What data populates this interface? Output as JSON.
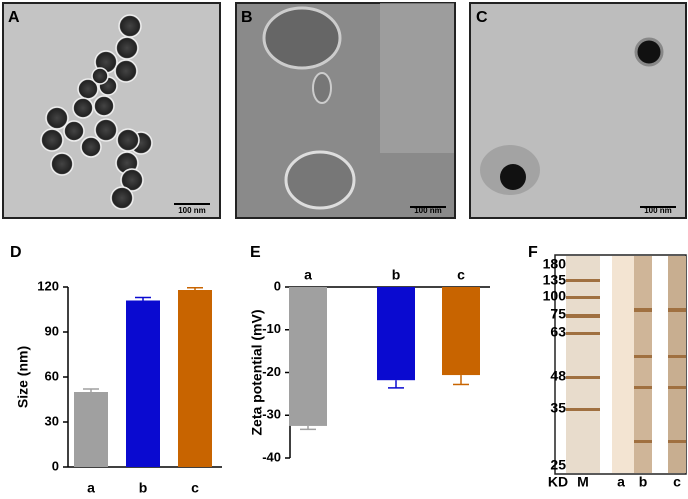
{
  "image_panels": [
    {
      "label": "A",
      "scale_bar": "100 nm"
    },
    {
      "label": "B",
      "scale_bar": "100 nm"
    },
    {
      "label": "C",
      "scale_bar": "100 nm"
    }
  ],
  "chart_data": [
    {
      "type": "bar",
      "panel_label": "D",
      "y_label": "Size (nm)",
      "categories": [
        "a",
        "b",
        "c"
      ],
      "values": [
        50,
        111,
        118
      ],
      "errors": [
        2,
        2,
        1.5
      ],
      "colors": [
        "#a0a0a0",
        "#0a0ad0",
        "#c86400"
      ],
      "ylim": [
        0,
        120
      ],
      "yticks": [
        0,
        30,
        60,
        90,
        120
      ]
    },
    {
      "type": "bar",
      "panel_label": "E",
      "y_label": "Zeta potential (mV)",
      "categories": [
        "a",
        "b",
        "c"
      ],
      "values": [
        -32.5,
        -21.8,
        -20.6
      ],
      "errors": [
        0.8,
        1.8,
        2.2
      ],
      "colors": [
        "#a0a0a0",
        "#0a0ad0",
        "#c86400"
      ],
      "ylim": [
        -40,
        0
      ],
      "yticks": [
        -40,
        -30,
        -20,
        -10,
        0
      ]
    }
  ],
  "gel": {
    "label": "F",
    "unit": "KD",
    "lanes": [
      "M",
      "a",
      "b",
      "c"
    ],
    "markers": [
      180,
      135,
      100,
      75,
      63,
      48,
      35,
      25
    ]
  }
}
